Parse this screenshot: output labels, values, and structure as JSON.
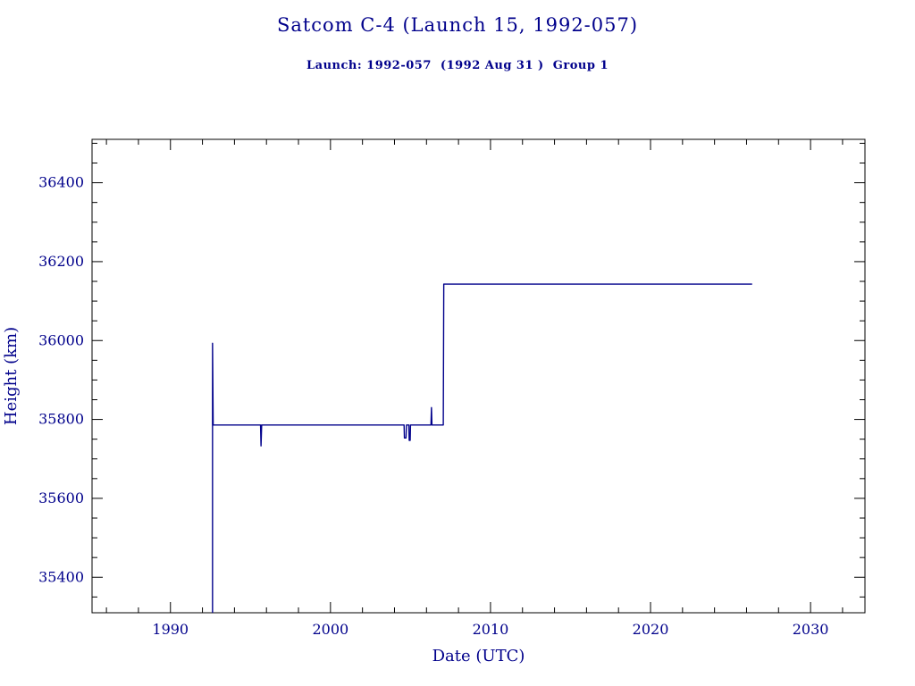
{
  "chart_data": {
    "type": "line",
    "title": "Satcom C-4 (Launch 15, 1992-057)",
    "subtitle": "Launch: 1992-057  (1992 Aug 31 )  Group 1",
    "xlabel": "Date (UTC)",
    "ylabel": "Height (km)",
    "xlim": [
      1985.1,
      2033.4
    ],
    "ylim": [
      35310,
      36510
    ],
    "x_ticks": [
      1990,
      2000,
      2010,
      2020,
      2030
    ],
    "y_ticks": [
      35400,
      35600,
      35800,
      36000,
      36200,
      36400
    ],
    "x_minor_step": 2,
    "y_minor_step": 50,
    "grid": false,
    "legend": "none",
    "line_color": "#00008b",
    "text_color": "#00008b",
    "frame_color": "#000000",
    "series": [
      {
        "name": "Satcom C-4 height",
        "points": [
          [
            1992.63,
            35310
          ],
          [
            1992.63,
            35993
          ],
          [
            1992.67,
            35786
          ],
          [
            1995.63,
            35786
          ],
          [
            1995.66,
            35733
          ],
          [
            1995.7,
            35786
          ],
          [
            2004.6,
            35786
          ],
          [
            2004.62,
            35753
          ],
          [
            2004.72,
            35753
          ],
          [
            2004.75,
            35786
          ],
          [
            2004.9,
            35786
          ],
          [
            2004.92,
            35747
          ],
          [
            2004.98,
            35747
          ],
          [
            2005.0,
            35786
          ],
          [
            2006.28,
            35786
          ],
          [
            2006.31,
            35830
          ],
          [
            2006.34,
            35786
          ],
          [
            2007.05,
            35786
          ],
          [
            2007.08,
            36143
          ],
          [
            2026.35,
            36143
          ]
        ]
      }
    ]
  }
}
